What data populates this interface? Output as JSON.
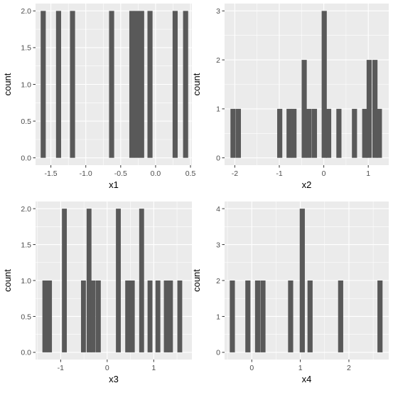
{
  "chart_data": [
    {
      "type": "bar",
      "xlabel": "x1",
      "ylabel": "count",
      "xlim": [
        -1.72,
        0.52
      ],
      "ylim": [
        -0.1,
        2.1
      ],
      "x_ticks": [
        -1.5,
        -1.0,
        -0.5,
        0.0,
        0.5
      ],
      "x_tick_labels": [
        "-1.5",
        "-1.0",
        "-0.5",
        "0.0",
        "0.5"
      ],
      "y_ticks": [
        0,
        0.5,
        1,
        1.5,
        2
      ],
      "y_tick_labels": [
        "0.0",
        "0.5",
        "1.0",
        "1.5",
        "2.0"
      ],
      "bin_width": 0.0728,
      "bins": [
        {
          "x": -1.61,
          "count": 2
        },
        {
          "x": -1.39,
          "count": 2
        },
        {
          "x": -1.19,
          "count": 2
        },
        {
          "x": -0.63,
          "count": 2
        },
        {
          "x": -0.34,
          "count": 2
        },
        {
          "x": -0.27,
          "count": 2
        },
        {
          "x": -0.2,
          "count": 2
        },
        {
          "x": -0.08,
          "count": 2
        },
        {
          "x": 0.28,
          "count": 2
        },
        {
          "x": 0.43,
          "count": 2
        }
      ]
    },
    {
      "type": "bar",
      "xlabel": "x2",
      "ylabel": "count",
      "xlim": [
        -2.23,
        1.46
      ],
      "ylim": [
        -0.15,
        3.15
      ],
      "x_ticks": [
        -2,
        -1,
        0,
        1
      ],
      "x_tick_labels": [
        "-2",
        "-1",
        "0",
        "1"
      ],
      "y_ticks": [
        0,
        1,
        2,
        3
      ],
      "y_tick_labels": [
        "0",
        "1",
        "2",
        "3"
      ],
      "bin_width": 0.115,
      "bins": [
        {
          "x": -2.04,
          "count": 1
        },
        {
          "x": -1.92,
          "count": 1
        },
        {
          "x": -0.99,
          "count": 1
        },
        {
          "x": -0.78,
          "count": 1
        },
        {
          "x": -0.67,
          "count": 1
        },
        {
          "x": -0.44,
          "count": 2
        },
        {
          "x": -0.33,
          "count": 1
        },
        {
          "x": -0.21,
          "count": 1
        },
        {
          "x": 0.01,
          "count": 3
        },
        {
          "x": 0.11,
          "count": 1
        },
        {
          "x": 0.34,
          "count": 1
        },
        {
          "x": 0.69,
          "count": 1
        },
        {
          "x": 0.92,
          "count": 1
        },
        {
          "x": 1.02,
          "count": 2
        },
        {
          "x": 1.15,
          "count": 2
        },
        {
          "x": 1.25,
          "count": 1
        }
      ]
    },
    {
      "type": "bar",
      "xlabel": "x3",
      "ylabel": "count",
      "xlim": [
        -1.54,
        1.82
      ],
      "ylim": [
        -0.1,
        2.1
      ],
      "x_ticks": [
        -1,
        0,
        1
      ],
      "x_tick_labels": [
        "-1",
        "0",
        "1"
      ],
      "y_ticks": [
        0,
        0.5,
        1,
        1.5,
        2
      ],
      "y_tick_labels": [
        "0.0",
        "0.5",
        "1.0",
        "1.5",
        "2.0"
      ],
      "bin_width": 0.1047,
      "bins": [
        {
          "x": -1.34,
          "count": 1
        },
        {
          "x": -1.24,
          "count": 1
        },
        {
          "x": -0.92,
          "count": 2
        },
        {
          "x": -0.51,
          "count": 1
        },
        {
          "x": -0.39,
          "count": 2
        },
        {
          "x": -0.3,
          "count": 1
        },
        {
          "x": -0.19,
          "count": 1
        },
        {
          "x": 0.24,
          "count": 2
        },
        {
          "x": 0.44,
          "count": 1
        },
        {
          "x": 0.54,
          "count": 1
        },
        {
          "x": 0.74,
          "count": 2
        },
        {
          "x": 0.92,
          "count": 1
        },
        {
          "x": 1.09,
          "count": 1
        },
        {
          "x": 1.27,
          "count": 1
        },
        {
          "x": 1.36,
          "count": 1
        },
        {
          "x": 1.56,
          "count": 1
        }
      ]
    },
    {
      "type": "bar",
      "xlabel": "x4",
      "ylabel": "count",
      "xlim": [
        -0.56,
        2.82
      ],
      "ylim": [
        -0.2,
        4.2
      ],
      "x_ticks": [
        0,
        1,
        2
      ],
      "x_tick_labels": [
        "0",
        "1",
        "2"
      ],
      "y_ticks": [
        0,
        1,
        2,
        3,
        4
      ],
      "y_tick_labels": [
        "0",
        "1",
        "2",
        "3",
        "4"
      ],
      "bin_width": 0.1053,
      "bins": [
        {
          "x": -0.4,
          "count": 2
        },
        {
          "x": -0.08,
          "count": 2
        },
        {
          "x": 0.12,
          "count": 2
        },
        {
          "x": 0.23,
          "count": 2
        },
        {
          "x": 0.8,
          "count": 2
        },
        {
          "x": 1.04,
          "count": 4
        },
        {
          "x": 1.2,
          "count": 2
        },
        {
          "x": 1.83,
          "count": 2
        },
        {
          "x": 2.64,
          "count": 2
        }
      ]
    }
  ]
}
